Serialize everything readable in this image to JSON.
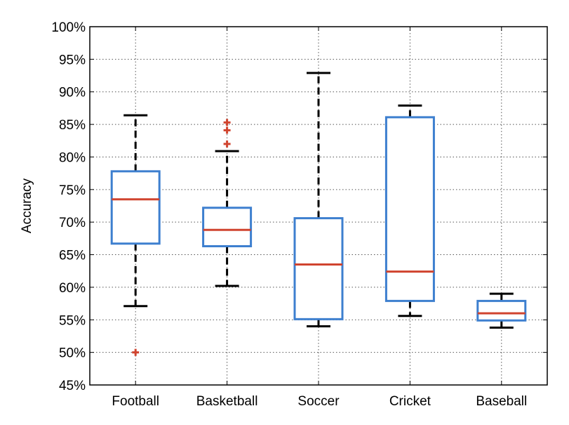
{
  "chart_data": {
    "type": "boxplot",
    "ylabel": "Accuracy",
    "ylim": [
      45,
      100
    ],
    "yticks": [
      45,
      50,
      55,
      60,
      65,
      70,
      75,
      80,
      85,
      90,
      95,
      100
    ],
    "ytick_labels": [
      "45%",
      "50%",
      "55%",
      "60%",
      "65%",
      "70%",
      "75%",
      "80%",
      "85%",
      "90%",
      "95%",
      "100%"
    ],
    "grid": true,
    "categories": [
      "Football",
      "Basketball",
      "Soccer",
      "Cricket",
      "Baseball"
    ],
    "boxes": [
      {
        "category": "Football",
        "whisker_low": 57.1,
        "q1": 66.7,
        "median": 73.5,
        "q3": 77.8,
        "whisker_high": 86.4,
        "outliers": [
          50.0
        ]
      },
      {
        "category": "Basketball",
        "whisker_low": 60.2,
        "q1": 66.3,
        "median": 68.8,
        "q3": 72.2,
        "whisker_high": 80.9,
        "outliers": [
          82.0,
          84.1,
          85.3
        ]
      },
      {
        "category": "Soccer",
        "whisker_low": 54.0,
        "q1": 55.1,
        "median": 63.5,
        "q3": 70.6,
        "whisker_high": 92.9,
        "outliers": []
      },
      {
        "category": "Cricket",
        "whisker_low": 55.6,
        "q1": 57.9,
        "median": 62.4,
        "q3": 86.1,
        "whisker_high": 87.9,
        "outliers": []
      },
      {
        "category": "Baseball",
        "whisker_low": 53.8,
        "q1": 54.9,
        "median": 56.0,
        "q3": 57.9,
        "whisker_high": 59.0,
        "outliers": []
      }
    ],
    "colors": {
      "box": "#3d7fcf",
      "median": "#d0442f",
      "whisker": "#000000",
      "outlier": "#d0442f",
      "grid": "#555555"
    }
  }
}
